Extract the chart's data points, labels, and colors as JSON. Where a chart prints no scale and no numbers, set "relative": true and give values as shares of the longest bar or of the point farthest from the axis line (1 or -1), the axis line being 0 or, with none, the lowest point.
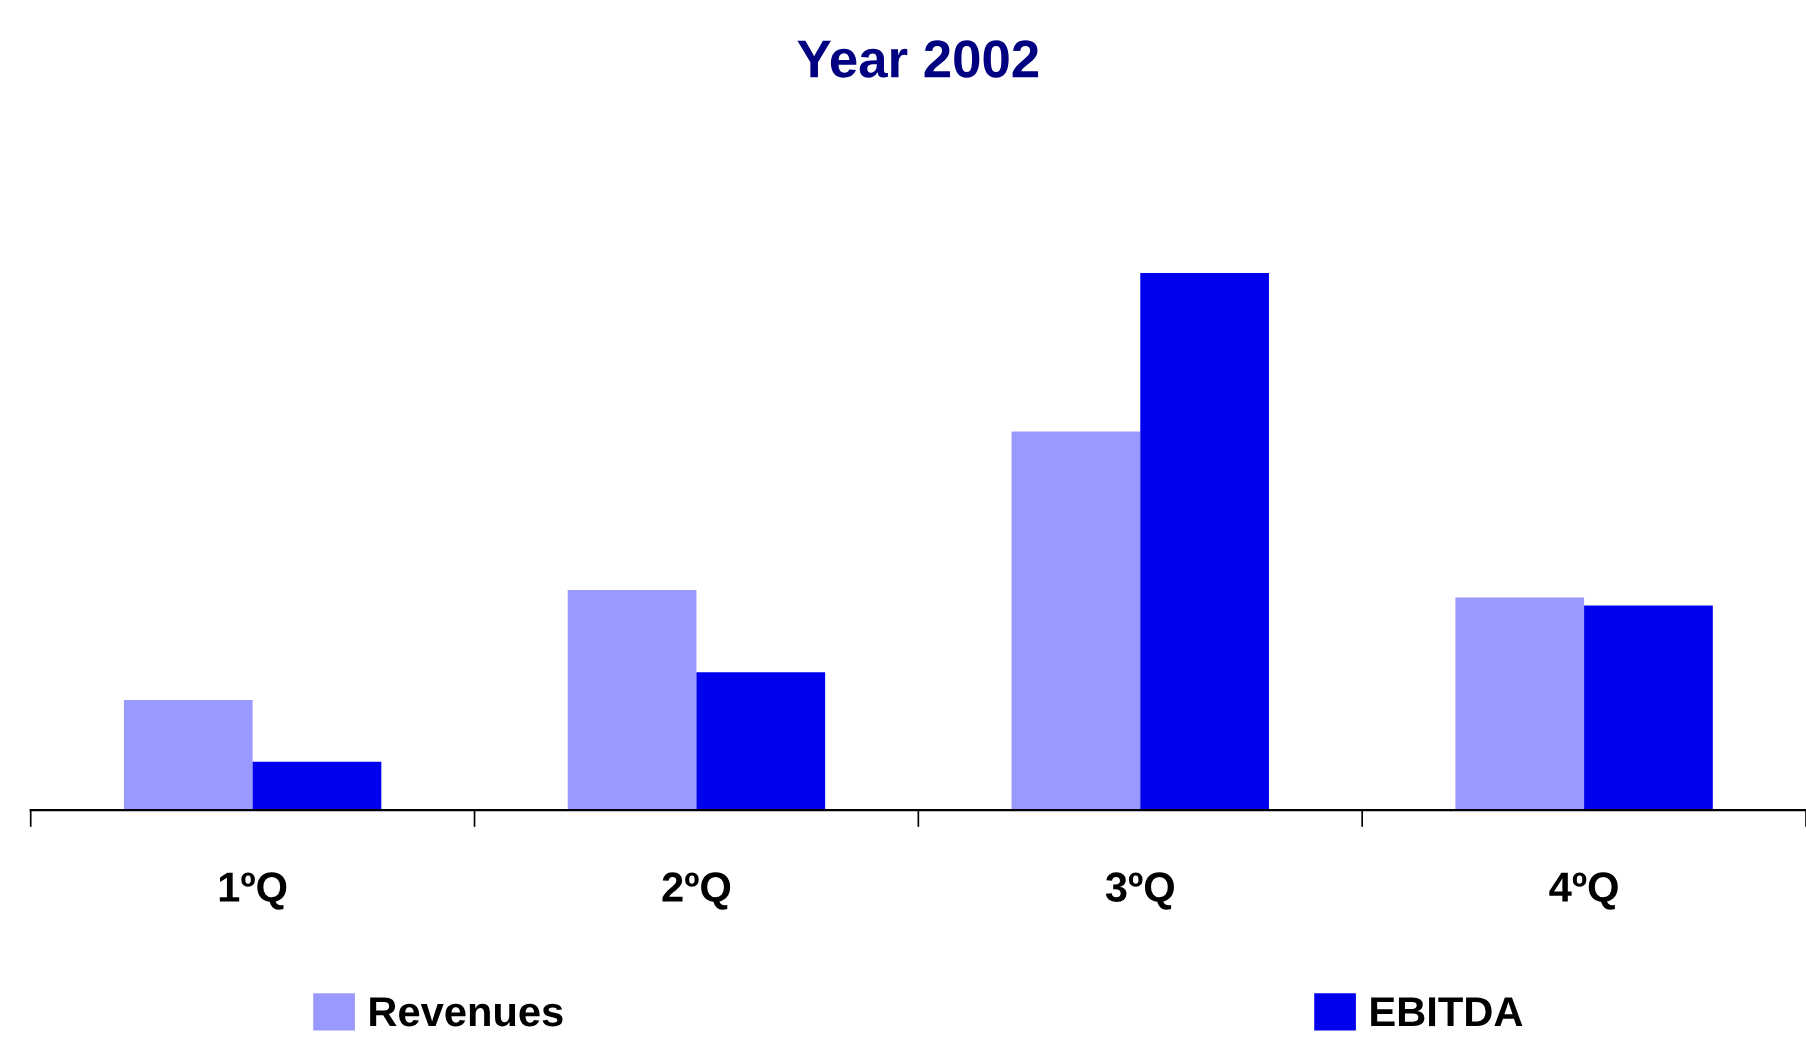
{
  "chart_data": {
    "type": "bar",
    "title": "Year 2002",
    "relative": true,
    "categories": [
      "1ºQ",
      "2ºQ",
      "3ºQ",
      "4ºQ"
    ],
    "series": [
      {
        "name": "Revenues",
        "color": "#9999ff",
        "values": [
          0.205,
          0.41,
          0.705,
          0.396
        ]
      },
      {
        "name": "EBITDA",
        "color": "#0000ee",
        "values": [
          0.09,
          0.257,
          1,
          0.381
        ]
      }
    ],
    "legend": "bottom",
    "grid": false
  }
}
